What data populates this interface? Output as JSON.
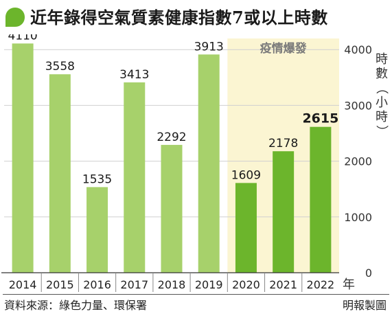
{
  "header": {
    "title": "近年錄得空氣質素健康指數7或以上時數"
  },
  "footer": {
    "source": "資料來源：綠色力量、環保署",
    "credit": "明報製圖"
  },
  "colors": {
    "bar_pre": "#a7d16b",
    "bar_pandemic": "#6cb52c",
    "band": "#fbf5d2",
    "grid": "#cfcfcf",
    "icon": "#6cb52c"
  },
  "chart_data": {
    "type": "bar",
    "title": "近年錄得空氣質素健康指數7或以上時數",
    "categories": [
      "2014",
      "2015",
      "2016",
      "2017",
      "2018",
      "2019",
      "2020",
      "2021",
      "2022"
    ],
    "values": [
      4110,
      3558,
      1535,
      3413,
      2292,
      3913,
      1609,
      2178,
      2615
    ],
    "data_labels": [
      "4110",
      "3558",
      "1535",
      "3413",
      "2292",
      "3913",
      "1609",
      "2178",
      "2615"
    ],
    "xlabel": "年",
    "ylabel": "時數（小時）",
    "ylim": [
      0,
      4200
    ],
    "yticks": [
      0,
      1000,
      2000,
      3000,
      4000
    ],
    "ytick_labels": [
      "0",
      "1000",
      "2000",
      "3000",
      "4000"
    ],
    "y_axis_side": "right",
    "grid": true,
    "highlight_band": {
      "label": "疫情爆發",
      "categories": [
        "2020",
        "2021",
        "2022"
      ]
    },
    "emphasized_category": "2022"
  }
}
